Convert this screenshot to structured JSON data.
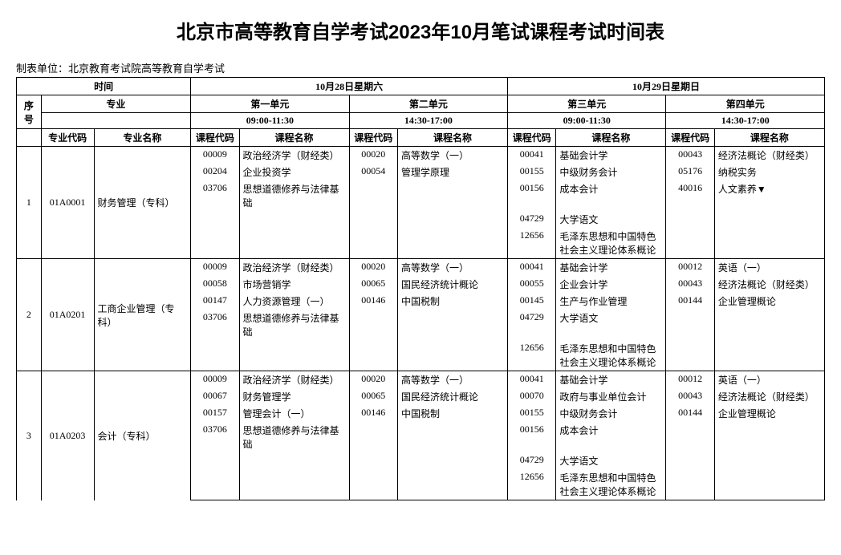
{
  "title": "北京市高等教育自学考试2023年10月笔试课程考试时间表",
  "subtitle": "制表单位：北京教育考试院高等教育自学考试",
  "header": {
    "time_label": "时间",
    "major_label": "专业",
    "day1": "10月28日星期六",
    "day2": "10月29日星期日",
    "unit1": "第一单元",
    "unit2": "第二单元",
    "unit3": "第三单元",
    "unit4": "第四单元",
    "time1": "09:00-11:30",
    "time2": "14:30-17:00",
    "time3": "09:00-11:30",
    "time4": "14:30-17:00",
    "seq": "序号",
    "major_code": "专业代码",
    "major_name": "专业名称",
    "course_code": "课程代码",
    "course_name": "课程名称"
  },
  "rows": [
    {
      "seq": "1",
      "major_code": "01A0001",
      "major_name": "财务管理（专科）",
      "lines": [
        {
          "c1": "00009",
          "n1": "政治经济学（财经类）",
          "c2": "00020",
          "n2": "高等数学（一）",
          "c3": "00041",
          "n3": "基础会计学",
          "c4": "00043",
          "n4": "经济法概论（财经类）"
        },
        {
          "c1": "00204",
          "n1": "企业投资学",
          "c2": "00054",
          "n2": "管理学原理",
          "c3": "00155",
          "n3": "中级财务会计",
          "c4": "05176",
          "n4": "纳税实务"
        },
        {
          "c1": "03706",
          "n1": "思想道德修养与法律基础",
          "c2": "",
          "n2": "",
          "c3": "00156",
          "n3": "成本会计",
          "c4": "40016",
          "n4": "人文素养▼"
        },
        {
          "c1": "",
          "n1": "",
          "c2": "",
          "n2": "",
          "c3": "04729",
          "n3": "大学语文",
          "c4": "",
          "n4": ""
        },
        {
          "c1": "",
          "n1": "",
          "c2": "",
          "n2": "",
          "c3": "12656",
          "n3": "毛泽东思想和中国特色社会主义理论体系概论",
          "c4": "",
          "n4": ""
        }
      ]
    },
    {
      "seq": "2",
      "major_code": "01A0201",
      "major_name": "工商企业管理（专科）",
      "lines": [
        {
          "c1": "00009",
          "n1": "政治经济学（财经类）",
          "c2": "00020",
          "n2": "高等数学（一）",
          "c3": "00041",
          "n3": "基础会计学",
          "c4": "00012",
          "n4": "英语（一）"
        },
        {
          "c1": "00058",
          "n1": "市场营销学",
          "c2": "00065",
          "n2": "国民经济统计概论",
          "c3": "00055",
          "n3": "企业会计学",
          "c4": "00043",
          "n4": "经济法概论（财经类）"
        },
        {
          "c1": "00147",
          "n1": "人力资源管理（一）",
          "c2": "00146",
          "n2": "中国税制",
          "c3": "00145",
          "n3": "生产与作业管理",
          "c4": "00144",
          "n4": "企业管理概论"
        },
        {
          "c1": "03706",
          "n1": "思想道德修养与法律基础",
          "c2": "",
          "n2": "",
          "c3": "04729",
          "n3": "大学语文",
          "c4": "",
          "n4": ""
        },
        {
          "c1": "",
          "n1": "",
          "c2": "",
          "n2": "",
          "c3": "12656",
          "n3": "毛泽东思想和中国特色社会主义理论体系概论",
          "c4": "",
          "n4": ""
        }
      ]
    },
    {
      "seq": "3",
      "major_code": "01A0203",
      "major_name": "会计（专科）",
      "lines": [
        {
          "c1": "00009",
          "n1": "政治经济学（财经类）",
          "c2": "00020",
          "n2": "高等数学（一）",
          "c3": "00041",
          "n3": "基础会计学",
          "c4": "00012",
          "n4": "英语（一）"
        },
        {
          "c1": "00067",
          "n1": "财务管理学",
          "c2": "00065",
          "n2": "国民经济统计概论",
          "c3": "00070",
          "n3": "政府与事业单位会计",
          "c4": "00043",
          "n4": "经济法概论（财经类）"
        },
        {
          "c1": "00157",
          "n1": "管理会计（一）",
          "c2": "00146",
          "n2": "中国税制",
          "c3": "00155",
          "n3": "中级财务会计",
          "c4": "00144",
          "n4": "企业管理概论"
        },
        {
          "c1": "03706",
          "n1": "思想道德修养与法律基础",
          "c2": "",
          "n2": "",
          "c3": "00156",
          "n3": "成本会计",
          "c4": "",
          "n4": ""
        },
        {
          "c1": "",
          "n1": "",
          "c2": "",
          "n2": "",
          "c3": "04729",
          "n3": "大学语文",
          "c4": "",
          "n4": ""
        },
        {
          "c1": "",
          "n1": "",
          "c2": "",
          "n2": "",
          "c3": "12656",
          "n3": "毛泽东思想和中国特色社会主义理论体系概论",
          "c4": "",
          "n4": ""
        }
      ]
    }
  ]
}
